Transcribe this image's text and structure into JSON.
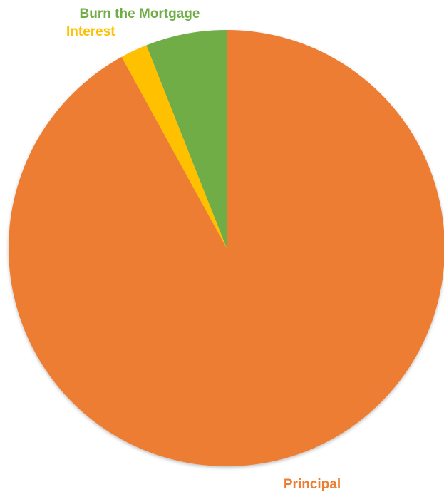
{
  "chart_data": {
    "type": "pie",
    "title": "",
    "slices": [
      {
        "label": "Burn the Mortgage",
        "value": 6,
        "color": "#70AD47"
      },
      {
        "label": "Interest",
        "value": 2,
        "color": "#FFC000"
      },
      {
        "label": "Principal",
        "value": 92,
        "color": "#ED7D31"
      }
    ],
    "start": "12 o'clock",
    "direction": "counter-clockwise",
    "legend": "none",
    "labels": "outside"
  }
}
